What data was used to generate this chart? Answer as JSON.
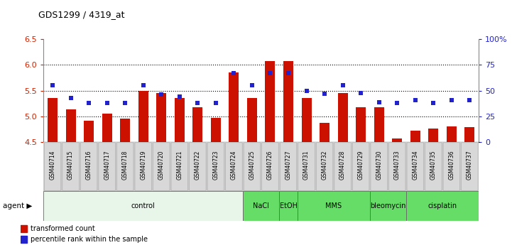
{
  "title": "GDS1299 / 4319_at",
  "samples": [
    "GSM40714",
    "GSM40715",
    "GSM40716",
    "GSM40717",
    "GSM40718",
    "GSM40719",
    "GSM40720",
    "GSM40721",
    "GSM40722",
    "GSM40723",
    "GSM40724",
    "GSM40725",
    "GSM40726",
    "GSM40727",
    "GSM40731",
    "GSM40732",
    "GSM40728",
    "GSM40729",
    "GSM40730",
    "GSM40733",
    "GSM40734",
    "GSM40735",
    "GSM40736",
    "GSM40737"
  ],
  "red_values": [
    5.36,
    5.13,
    4.92,
    5.05,
    4.95,
    5.5,
    5.46,
    5.36,
    5.18,
    4.97,
    5.86,
    5.36,
    6.08,
    6.08,
    5.36,
    4.88,
    5.46,
    5.18,
    5.18,
    4.57,
    4.72,
    4.77,
    4.81,
    4.79
  ],
  "blue_values": [
    55,
    43,
    38,
    38,
    38,
    55,
    46,
    44,
    38,
    38,
    67,
    55,
    67,
    67,
    50,
    47,
    55,
    48,
    39,
    38,
    41,
    38,
    41,
    41
  ],
  "ylim_left": [
    4.5,
    6.5
  ],
  "ylim_right": [
    0,
    100
  ],
  "yticks_left": [
    4.5,
    5.0,
    5.5,
    6.0,
    6.5
  ],
  "yticks_right": [
    0,
    25,
    50,
    75,
    100
  ],
  "ytick_labels_right": [
    "0",
    "25",
    "50",
    "75",
    "100%"
  ],
  "hlines": [
    5.0,
    5.5,
    6.0
  ],
  "bar_color": "#CC1100",
  "dot_color": "#2222CC",
  "bar_bottom": 4.5,
  "groups": [
    {
      "label": "control",
      "start": 0,
      "end": 10,
      "color": "#e8f5e9"
    },
    {
      "label": "NaCl",
      "start": 11,
      "end": 12,
      "color": "#66dd66"
    },
    {
      "label": "EtOH",
      "start": 13,
      "end": 13,
      "color": "#66dd66"
    },
    {
      "label": "MMS",
      "start": 14,
      "end": 17,
      "color": "#66dd66"
    },
    {
      "label": "bleomycin",
      "start": 18,
      "end": 19,
      "color": "#66dd66"
    },
    {
      "label": "cisplatin",
      "start": 20,
      "end": 23,
      "color": "#66dd66"
    }
  ],
  "legend_items": [
    {
      "label": "transformed count",
      "color": "#CC1100"
    },
    {
      "label": "percentile rank within the sample",
      "color": "#2222CC"
    }
  ]
}
